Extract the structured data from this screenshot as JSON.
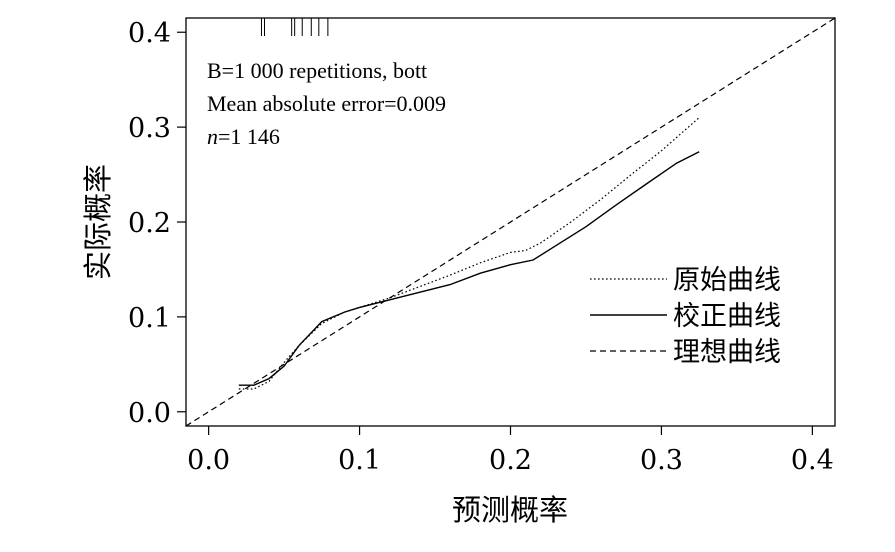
{
  "chart_data": {
    "type": "line",
    "title": "",
    "xlabel": "预测概率",
    "ylabel": "实际概率",
    "xlim": [
      -0.015,
      0.415
    ],
    "ylim": [
      -0.015,
      0.415
    ],
    "x_ticks": [
      {
        "value": 0.0,
        "label": "0.0"
      },
      {
        "value": 0.1,
        "label": "0.1"
      },
      {
        "value": 0.2,
        "label": "0.2"
      },
      {
        "value": 0.3,
        "label": "0.3"
      },
      {
        "value": 0.4,
        "label": "0.4"
      }
    ],
    "y_ticks": [
      {
        "value": 0.0,
        "label": "0.0"
      },
      {
        "value": 0.1,
        "label": "0.1"
      },
      {
        "value": 0.2,
        "label": "0.2"
      },
      {
        "value": 0.3,
        "label": "0.3"
      },
      {
        "value": 0.4,
        "label": "0.4"
      }
    ],
    "annotations": [
      {
        "id": "reps",
        "parts": [
          {
            "text": "B=1 000 repetitions, bott",
            "italic": false
          }
        ]
      },
      {
        "id": "mae",
        "parts": [
          {
            "text": "Mean absolute error=0.009",
            "italic": false
          }
        ]
      },
      {
        "id": "n",
        "parts": [
          {
            "text": "n",
            "italic": true
          },
          {
            "text": "=1 146",
            "italic": false
          }
        ]
      }
    ],
    "legend": {
      "position": "right",
      "entries": [
        {
          "label": "原始曲线",
          "style": "dotted"
        },
        {
          "label": "校正曲线",
          "style": "solid"
        },
        {
          "label": "理想曲线",
          "style": "dashed"
        }
      ]
    },
    "rug_x": [
      0.035,
      0.037,
      0.055,
      0.057,
      0.062,
      0.068,
      0.073,
      0.079
    ],
    "grid": false,
    "series": [
      {
        "name": "原始曲线",
        "style": "dotted",
        "x": [
          0.02,
          0.03,
          0.04,
          0.05,
          0.06,
          0.075,
          0.09,
          0.1,
          0.12,
          0.14,
          0.16,
          0.18,
          0.2,
          0.21,
          0.22,
          0.24,
          0.26,
          0.28,
          0.3,
          0.325
        ],
        "y": [
          0.024,
          0.024,
          0.032,
          0.052,
          0.07,
          0.093,
          0.105,
          0.11,
          0.12,
          0.132,
          0.144,
          0.157,
          0.168,
          0.17,
          0.178,
          0.2,
          0.224,
          0.25,
          0.275,
          0.31
        ]
      },
      {
        "name": "校正曲线",
        "style": "solid",
        "x": [
          0.02,
          0.03,
          0.04,
          0.05,
          0.06,
          0.075,
          0.09,
          0.1,
          0.12,
          0.14,
          0.16,
          0.18,
          0.2,
          0.215,
          0.23,
          0.25,
          0.27,
          0.29,
          0.31,
          0.325
        ],
        "y": [
          0.028,
          0.028,
          0.035,
          0.048,
          0.07,
          0.095,
          0.105,
          0.11,
          0.118,
          0.126,
          0.134,
          0.146,
          0.155,
          0.16,
          0.175,
          0.195,
          0.218,
          0.24,
          0.262,
          0.274
        ]
      },
      {
        "name": "理想曲线",
        "style": "dashed",
        "x": [
          -0.015,
          0.415
        ],
        "y": [
          -0.015,
          0.415
        ]
      }
    ]
  }
}
